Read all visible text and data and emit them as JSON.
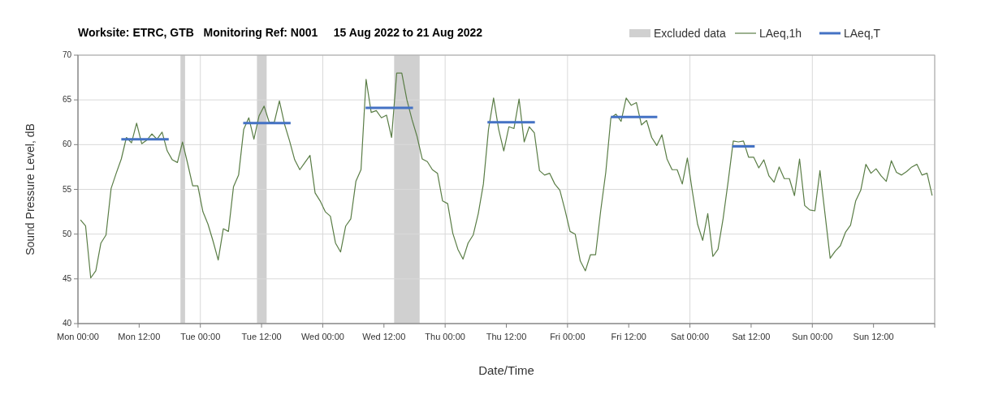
{
  "chart_data": {
    "type": "line",
    "title": "Worksite: ETRC, GTB   Monitoring Ref: N001     15 Aug 2022 to 21 Aug 2022",
    "xlabel": "Date/Time",
    "ylabel": "Sound Pressure Level, dB",
    "xlim": [
      "2022-08-15T00:00",
      "2022-08-22T00:00"
    ],
    "ylim": [
      40,
      70
    ],
    "yticks": [
      40,
      45,
      50,
      55,
      60,
      65,
      70
    ],
    "xticks": [
      {
        "value": "2022-08-15T00:00",
        "label": "Mon 00:00"
      },
      {
        "value": "2022-08-15T12:00",
        "label": "Mon 12:00"
      },
      {
        "value": "2022-08-16T00:00",
        "label": "Tue 00:00"
      },
      {
        "value": "2022-08-16T12:00",
        "label": "Tue 12:00"
      },
      {
        "value": "2022-08-17T00:00",
        "label": "Wed 00:00"
      },
      {
        "value": "2022-08-17T12:00",
        "label": "Wed 12:00"
      },
      {
        "value": "2022-08-18T00:00",
        "label": "Thu 00:00"
      },
      {
        "value": "2022-08-18T12:00",
        "label": "Thu 12:00"
      },
      {
        "value": "2022-08-19T00:00",
        "label": "Fri 00:00"
      },
      {
        "value": "2022-08-19T12:00",
        "label": "Fri 12:00"
      },
      {
        "value": "2022-08-20T00:00",
        "label": "Sat 00:00"
      },
      {
        "value": "2022-08-20T12:00",
        "label": "Sat 12:00"
      },
      {
        "value": "2022-08-21T00:00",
        "label": "Sun 00:00"
      },
      {
        "value": "2022-08-21T12:00",
        "label": "Sun 12:00"
      },
      {
        "value": "2022-08-22T00:00",
        "label": null
      }
    ],
    "grid": true,
    "legend": "top right",
    "bands": [
      {
        "axis": "x",
        "from": "2022-08-15T20:06",
        "to": "2022-08-15T21:00",
        "label": "Excluded data",
        "color": "#d0d0d0"
      },
      {
        "axis": "x",
        "from": "2022-08-16T11:06",
        "to": "2022-08-16T13:00",
        "color": "#d0d0d0"
      },
      {
        "axis": "x",
        "from": "2022-08-17T14:00",
        "to": "2022-08-17T19:00",
        "color": "#d0d0d0"
      }
    ],
    "series": [
      {
        "name": "LAeq,1h",
        "color": "#5a7d46",
        "x": [
          "2022-08-15T00:30",
          "2022-08-15T01:30",
          "2022-08-15T02:30",
          "2022-08-15T03:30",
          "2022-08-15T04:30",
          "2022-08-15T05:30",
          "2022-08-15T06:30",
          "2022-08-15T07:30",
          "2022-08-15T08:30",
          "2022-08-15T09:30",
          "2022-08-15T10:30",
          "2022-08-15T11:30",
          "2022-08-15T12:30",
          "2022-08-15T13:30",
          "2022-08-15T14:30",
          "2022-08-15T15:30",
          "2022-08-15T16:30",
          "2022-08-15T17:30",
          "2022-08-15T18:30",
          "2022-08-15T19:30",
          "2022-08-15T20:30",
          "2022-08-15T21:30",
          "2022-08-15T22:30",
          "2022-08-15T23:30",
          "2022-08-16T00:30",
          "2022-08-16T01:30",
          "2022-08-16T02:30",
          "2022-08-16T03:30",
          "2022-08-16T04:30",
          "2022-08-16T05:30",
          "2022-08-16T06:30",
          "2022-08-16T07:30",
          "2022-08-16T08:30",
          "2022-08-16T09:30",
          "2022-08-16T10:30",
          "2022-08-16T11:30",
          "2022-08-16T12:30",
          "2022-08-16T13:30",
          "2022-08-16T14:30",
          "2022-08-16T15:30",
          "2022-08-16T16:30",
          "2022-08-16T17:30",
          "2022-08-16T18:30",
          "2022-08-16T19:30",
          "2022-08-16T20:30",
          "2022-08-16T21:30",
          "2022-08-16T22:30",
          "2022-08-16T23:30",
          "2022-08-17T00:30",
          "2022-08-17T01:30",
          "2022-08-17T02:30",
          "2022-08-17T03:30",
          "2022-08-17T04:30",
          "2022-08-17T05:30",
          "2022-08-17T06:30",
          "2022-08-17T07:30",
          "2022-08-17T08:30",
          "2022-08-17T09:30",
          "2022-08-17T10:30",
          "2022-08-17T11:30",
          "2022-08-17T12:30",
          "2022-08-17T13:30",
          "2022-08-17T14:30",
          "2022-08-17T15:30",
          "2022-08-17T16:30",
          "2022-08-17T17:30",
          "2022-08-17T18:30",
          "2022-08-17T19:30",
          "2022-08-17T20:30",
          "2022-08-17T21:30",
          "2022-08-17T22:30",
          "2022-08-17T23:30",
          "2022-08-18T00:30",
          "2022-08-18T01:30",
          "2022-08-18T02:30",
          "2022-08-18T03:30",
          "2022-08-18T04:30",
          "2022-08-18T05:30",
          "2022-08-18T06:30",
          "2022-08-18T07:30",
          "2022-08-18T08:30",
          "2022-08-18T09:30",
          "2022-08-18T10:30",
          "2022-08-18T11:30",
          "2022-08-18T12:30",
          "2022-08-18T13:30",
          "2022-08-18T14:30",
          "2022-08-18T15:30",
          "2022-08-18T16:30",
          "2022-08-18T17:30",
          "2022-08-18T18:30",
          "2022-08-18T19:30",
          "2022-08-18T20:30",
          "2022-08-18T21:30",
          "2022-08-18T22:30",
          "2022-08-18T23:30",
          "2022-08-19T00:30",
          "2022-08-19T01:30",
          "2022-08-19T02:30",
          "2022-08-19T03:30",
          "2022-08-19T04:30",
          "2022-08-19T05:30",
          "2022-08-19T06:30",
          "2022-08-19T07:30",
          "2022-08-19T08:30",
          "2022-08-19T09:30",
          "2022-08-19T10:30",
          "2022-08-19T11:30",
          "2022-08-19T12:30",
          "2022-08-19T13:30",
          "2022-08-19T14:30",
          "2022-08-19T15:30",
          "2022-08-19T16:30",
          "2022-08-19T17:30",
          "2022-08-19T18:30",
          "2022-08-19T19:30",
          "2022-08-19T20:30",
          "2022-08-19T21:30",
          "2022-08-19T22:30",
          "2022-08-19T23:30",
          "2022-08-20T00:30",
          "2022-08-20T01:30",
          "2022-08-20T02:30",
          "2022-08-20T03:30",
          "2022-08-20T04:30",
          "2022-08-20T05:30",
          "2022-08-20T06:30",
          "2022-08-20T07:30",
          "2022-08-20T08:30",
          "2022-08-20T09:30",
          "2022-08-20T10:30",
          "2022-08-20T11:30",
          "2022-08-20T12:30",
          "2022-08-20T13:30",
          "2022-08-20T14:30",
          "2022-08-20T15:30",
          "2022-08-20T16:30",
          "2022-08-20T17:30",
          "2022-08-20T18:30",
          "2022-08-20T19:30",
          "2022-08-20T20:30",
          "2022-08-20T21:30",
          "2022-08-20T22:30",
          "2022-08-20T23:30",
          "2022-08-21T00:30",
          "2022-08-21T01:30",
          "2022-08-21T02:30",
          "2022-08-21T03:30",
          "2022-08-21T04:30",
          "2022-08-21T05:30",
          "2022-08-21T06:30",
          "2022-08-21T07:30",
          "2022-08-21T08:30",
          "2022-08-21T09:30",
          "2022-08-21T10:30",
          "2022-08-21T11:30",
          "2022-08-21T12:30",
          "2022-08-21T13:30",
          "2022-08-21T14:30",
          "2022-08-21T15:30",
          "2022-08-21T16:30",
          "2022-08-21T17:30",
          "2022-08-21T18:30",
          "2022-08-21T19:30",
          "2022-08-21T20:30",
          "2022-08-21T21:30",
          "2022-08-21T22:30",
          "2022-08-21T23:30"
        ],
        "values": [
          51.6,
          50.9,
          45.1,
          45.9,
          49.0,
          49.9,
          55.1,
          56.8,
          58.4,
          60.8,
          60.2,
          62.4,
          60.1,
          60.5,
          61.2,
          60.6,
          61.4,
          59.3,
          58.3,
          58.0,
          60.3,
          57.9,
          55.4,
          55.4,
          52.5,
          51.1,
          49.2,
          47.1,
          50.6,
          50.3,
          55.3,
          56.6,
          61.7,
          63.0,
          60.6,
          63.2,
          64.3,
          62.5,
          62.5,
          64.9,
          62.3,
          60.4,
          58.3,
          57.2,
          58.0,
          58.8,
          54.6,
          53.7,
          52.5,
          52.0,
          49.0,
          48.0,
          50.9,
          51.7,
          55.9,
          57.2,
          67.3,
          63.6,
          63.8,
          63.0,
          63.3,
          60.8,
          68.0,
          68.0,
          65.0,
          62.8,
          60.9,
          58.4,
          58.1,
          57.2,
          56.8,
          53.7,
          53.4,
          50.1,
          48.3,
          47.2,
          49.0,
          49.9,
          52.3,
          55.6,
          61.7,
          65.2,
          61.7,
          59.3,
          62.0,
          61.8,
          65.1,
          60.3,
          62.0,
          61.3,
          57.1,
          56.6,
          56.8,
          55.6,
          54.9,
          52.7,
          50.3,
          50.0,
          47.0,
          45.9,
          47.7,
          47.7,
          52.6,
          56.9,
          63.0,
          63.4,
          62.6,
          65.2,
          64.4,
          64.7,
          62.2,
          62.7,
          60.8,
          59.9,
          61.1,
          58.4,
          57.2,
          57.2,
          55.6,
          58.5,
          54.7,
          51.1,
          49.3,
          52.3,
          47.5,
          48.3,
          51.7,
          55.9,
          60.4,
          60.3,
          60.4,
          58.6,
          58.6,
          57.4,
          58.3,
          56.5,
          55.8,
          57.5,
          56.2,
          56.2,
          54.3,
          58.4,
          53.2,
          52.7,
          52.6,
          57.1,
          52.2,
          47.3,
          48.1,
          48.7,
          50.2,
          51.0,
          53.7,
          54.9,
          57.8,
          56.8,
          57.3,
          56.5,
          55.9,
          58.2,
          56.9,
          56.6,
          57.0,
          57.5,
          57.8,
          56.6,
          56.8,
          54.3
        ]
      },
      {
        "name": "LAeq,T",
        "color": "#4472c4",
        "x": [
          "2022-08-15T08:30",
          "2022-08-15T17:48",
          "2022-08-16T01:00",
          "2022-08-16T08:24",
          "2022-08-16T17:42",
          "2022-08-17T02:00",
          "2022-08-17T08:24",
          "2022-08-17T17:42",
          "2022-08-18T00:00",
          "2022-08-18T08:18",
          "2022-08-18T17:36",
          "2022-08-19T00:00",
          "2022-08-19T08:30",
          "2022-08-19T17:36",
          "2022-08-20T00:00",
          "2022-08-20T08:18",
          "2022-08-20T12:42"
        ],
        "values": [
          60.6,
          60.6,
          null,
          62.4,
          62.4,
          null,
          64.1,
          64.1,
          null,
          62.5,
          62.5,
          null,
          63.1,
          63.1,
          null,
          59.8,
          59.8
        ]
      }
    ]
  }
}
